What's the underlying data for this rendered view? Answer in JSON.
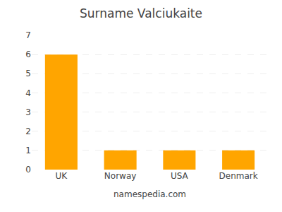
{
  "chart_data": {
    "type": "bar",
    "title": "Surname Valciukaite",
    "categories": [
      "UK",
      "Norway",
      "USA",
      "Denmark"
    ],
    "values": [
      6,
      1,
      1,
      1
    ],
    "color": "#FFA500",
    "ylim": [
      0,
      7
    ],
    "yticks": [
      0,
      1,
      2,
      3,
      4,
      5,
      6,
      7
    ],
    "grid": true,
    "annotations": [
      "namespedia.com"
    ]
  }
}
